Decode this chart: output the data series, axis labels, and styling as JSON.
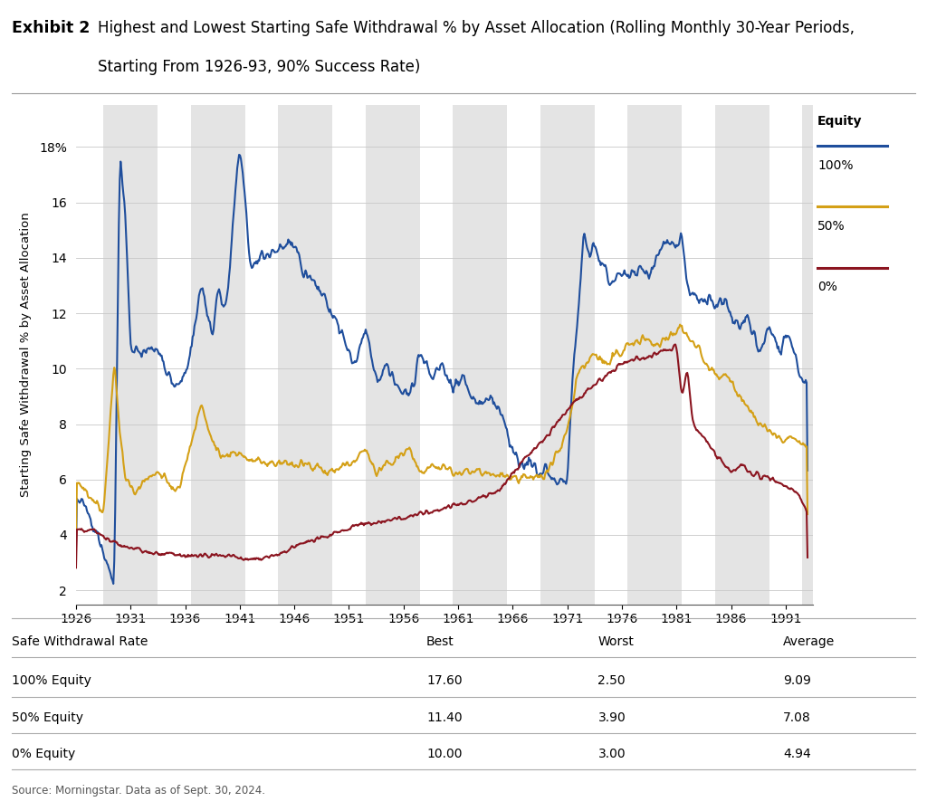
{
  "title_bold": "Exhibit 2",
  "title_rest": "  Highest and Lowest Starting Safe Withdrawal % by Asset Allocation (Rolling Monthly 30-Year Periods,\n           Starting From 1926-93, 90% Success Rate)",
  "ylabel": "Starting Safe Withdrawal % by Asset Allocation",
  "ylim": [
    1.5,
    19.5
  ],
  "ytick_values": [
    2,
    4,
    6,
    8,
    10,
    12,
    14,
    16,
    18
  ],
  "ytick_labels": [
    "2",
    "4",
    "6",
    "8",
    "10",
    "12",
    "14",
    "16",
    "18%"
  ],
  "xticks": [
    1926,
    1931,
    1936,
    1941,
    1946,
    1951,
    1956,
    1961,
    1966,
    1971,
    1976,
    1981,
    1986,
    1991
  ],
  "color_100": "#1F4E9C",
  "color_50": "#D4A017",
  "color_0": "#8B1520",
  "bg_color": "#FFFFFF",
  "stripe_color": "#E4E4E4",
  "stripe_alpha": 1.0,
  "stripe_ranges": [
    [
      1928.5,
      1933.5
    ],
    [
      1936.5,
      1941.5
    ],
    [
      1944.5,
      1949.5
    ],
    [
      1952.5,
      1957.5
    ],
    [
      1960.5,
      1965.5
    ],
    [
      1968.5,
      1973.5
    ],
    [
      1976.5,
      1981.5
    ],
    [
      1984.5,
      1989.5
    ],
    [
      1992.5,
      1994.5
    ]
  ],
  "table_headers": [
    "Safe Withdrawal Rate",
    "Best",
    "Worst",
    "Average"
  ],
  "table_rows": [
    [
      "100% Equity",
      "17.60",
      "2.50",
      "9.09"
    ],
    [
      "50% Equity",
      "11.40",
      "3.90",
      "7.08"
    ],
    [
      "0% Equity",
      "10.00",
      "3.00",
      "4.94"
    ]
  ],
  "source": "Source: Morningstar. Data as of Sept. 30, 2024.",
  "lw_100": 1.5,
  "lw_50": 1.5,
  "lw_0": 1.5
}
